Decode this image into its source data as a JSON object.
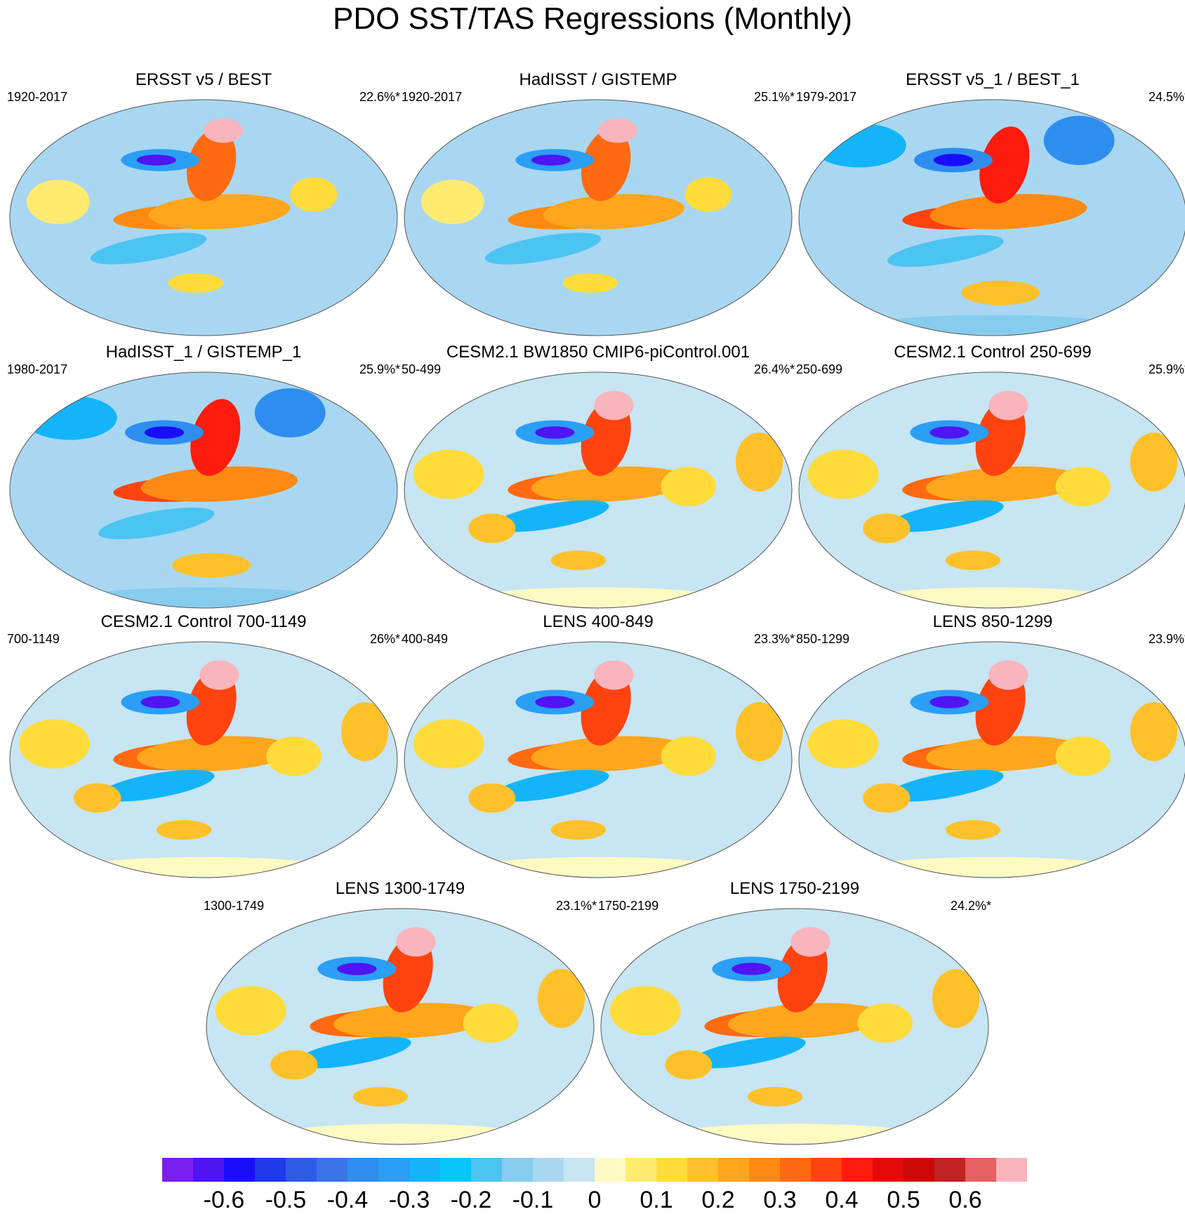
{
  "title": "PDO SST/TAS Regressions (Monthly)",
  "colors": {
    "land_outline": "#ffffff",
    "map_border": "#555555",
    "colorbar": [
      "#7a1ff0",
      "#4f15f2",
      "#1a0dfa",
      "#1f3ae8",
      "#2f5ae6",
      "#3b73e8",
      "#2e8ef0",
      "#2a9ff5",
      "#14b4fa",
      "#07c6fb",
      "#4bc4f2",
      "#86ccef",
      "#a9d7f1",
      "#c7e5f3",
      "#fffac2",
      "#ffeb70",
      "#ffdc3a",
      "#ffc12a",
      "#ffa61d",
      "#ff8a13",
      "#ff6a10",
      "#ff430f",
      "#ff1b0d",
      "#e40a0a",
      "#cb0707",
      "#c22222",
      "#e56060",
      "#f9b4bc"
    ]
  },
  "panels": [
    {
      "title": "ERSST v5 / BEST",
      "period": "1920-2017",
      "pct": "22.6%*",
      "style": "obs"
    },
    {
      "title": "HadISST / GISTEMP",
      "period": "1920-2017",
      "pct": "25.1%*",
      "style": "obs"
    },
    {
      "title": "ERSST v5_1 / BEST_1",
      "period": "1979-2017",
      "pct": "24.5%*",
      "style": "obs-recent"
    },
    {
      "title": "HadISST_1 / GISTEMP_1",
      "period": "1980-2017",
      "pct": "25.9%*",
      "style": "obs-recent"
    },
    {
      "title": "CESM2.1 BW1850 CMIP6-piControl.001",
      "period": "50-499",
      "pct": "26.4%*",
      "style": "model"
    },
    {
      "title": "CESM2.1 Control 250-699",
      "period": "250-699",
      "pct": "25.9%*",
      "style": "model"
    },
    {
      "title": "CESM2.1 Control 700-1149",
      "period": "700-1149",
      "pct": "26%*",
      "style": "model"
    },
    {
      "title": "LENS 400-849",
      "period": "400-849",
      "pct": "23.3%*",
      "style": "model"
    },
    {
      "title": "LENS 850-1299",
      "period": "850-1299",
      "pct": "23.9%*",
      "style": "model"
    },
    {
      "title": "LENS 1300-1749",
      "period": "1300-1749",
      "pct": "23.1%*",
      "style": "model"
    },
    {
      "title": "LENS 1750-2199",
      "period": "1750-2199",
      "pct": "24.2%*",
      "style": "model"
    }
  ],
  "colorbar": {
    "labels": [
      "-0.6",
      "-0.5",
      "-0.4",
      "-0.3",
      "-0.2",
      "-0.1",
      "0",
      "0.1",
      "0.2",
      "0.3",
      "0.4",
      "0.5",
      "0.6"
    ]
  }
}
